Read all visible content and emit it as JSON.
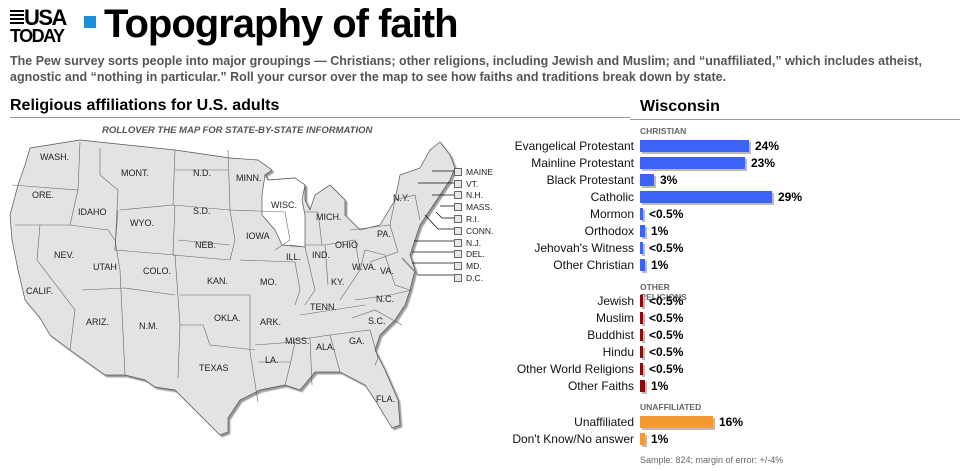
{
  "header": {
    "logo_line1": "USA",
    "logo_line2": "TODAY",
    "title": "Topography of faith",
    "intro": "The Pew survey sorts people into major groupings — Christians; other religions, including Jewish and Muslim; and “unaffiliated,” which includes atheist, agnostic and “nothing in particular.” Roll your cursor over the map to see how faiths and traditions break down by state."
  },
  "map_section": {
    "title": "Religious affiliations for U.S. adults",
    "instruction": "ROLLOVER THE MAP FOR STATE-BY-STATE  INFORMATION",
    "selected_state": "WISC.",
    "state_labels": [
      "WASH.",
      "ORE.",
      "CALIF.",
      "IDAHO",
      "NEV.",
      "MONT.",
      "WYO.",
      "UTAH",
      "ARIZ.",
      "COLO.",
      "N.M.",
      "N.D.",
      "S.D.",
      "NEB.",
      "KAN.",
      "OKLA.",
      "TEXAS",
      "MINN.",
      "IOWA",
      "MO.",
      "ARK.",
      "LA.",
      "WISC.",
      "ILL.",
      "MICH.",
      "IND.",
      "OHIO",
      "KY.",
      "TENN.",
      "MISS.",
      "ALA.",
      "GA.",
      "FLA.",
      "S.C.",
      "N.C.",
      "VA.",
      "W.VA.",
      "PA.",
      "N.Y."
    ],
    "northeast_buttons": [
      "MAINE",
      "VT.",
      "N.H.",
      "MASS.",
      "R.I.",
      "CONN.",
      "N.J.",
      "DEL.",
      "MD.",
      "D.C."
    ]
  },
  "state_panel": {
    "state_name": "Wisconsin",
    "colors": {
      "christian": "#3b63f5",
      "other": "#8b0a0a",
      "unaffiliated": "#f59a33"
    },
    "sample_note": "Sample: 824; margin of error: +/-4%"
  },
  "chart_data": {
    "type": "bar",
    "title": "Wisconsin",
    "orientation": "horizontal",
    "groups": [
      {
        "name": "CHRISTIAN",
        "color": "#3b63f5",
        "items": [
          {
            "label": "Evangelical Protestant",
            "value": 24,
            "display": "24%"
          },
          {
            "label": "Mainline Protestant",
            "value": 23,
            "display": "23%"
          },
          {
            "label": "Black Protestant",
            "value": 3,
            "display": "3%"
          },
          {
            "label": "Catholic",
            "value": 29,
            "display": "29%"
          },
          {
            "label": "Mormon",
            "value": 0.3,
            "display": "<0.5%"
          },
          {
            "label": "Orthodox",
            "value": 1,
            "display": "1%"
          },
          {
            "label": "Jehovah's Witness",
            "value": 0.3,
            "display": "<0.5%"
          },
          {
            "label": "Other Christian",
            "value": 1,
            "display": "1%"
          }
        ]
      },
      {
        "name": "OTHER RELIGIONS",
        "color": "#8b0a0a",
        "items": [
          {
            "label": "Jewish",
            "value": 0.3,
            "display": "<0.5%"
          },
          {
            "label": "Muslim",
            "value": 0.3,
            "display": "<0.5%"
          },
          {
            "label": "Buddhist",
            "value": 0.3,
            "display": "<0.5%"
          },
          {
            "label": "Hindu",
            "value": 0.3,
            "display": "<0.5%"
          },
          {
            "label": "Other World Religions",
            "value": 0.3,
            "display": "<0.5%"
          },
          {
            "label": "Other Faiths",
            "value": 1,
            "display": "1%"
          }
        ]
      },
      {
        "name": "UNAFFILIATED",
        "color": "#f59a33",
        "items": [
          {
            "label": "Unaffiliated",
            "value": 16,
            "display": "16%"
          },
          {
            "label": "Don't Know/No answer",
            "value": 1,
            "display": "1%"
          }
        ]
      }
    ],
    "xlabel": "",
    "ylabel": "",
    "unit": "%"
  }
}
